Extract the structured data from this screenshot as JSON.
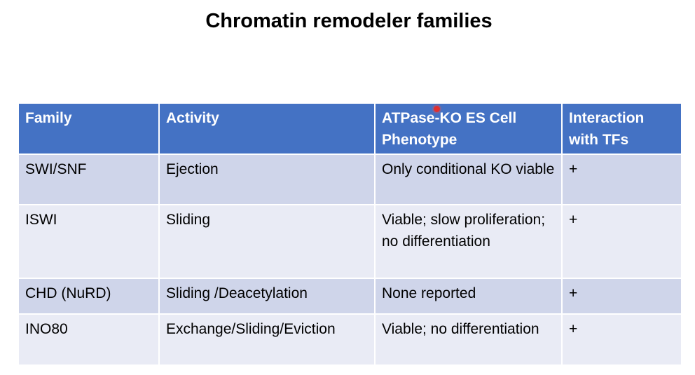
{
  "slide": {
    "title": "Chromatin remodeler families"
  },
  "table": {
    "columns": [
      "Family",
      "Activity",
      "ATPase-KO ES Cell Phenotype",
      "Interaction with TFs"
    ],
    "rows": [
      {
        "family": "SWI/SNF",
        "activity": "Ejection",
        "phenotype": "Only conditional KO viable",
        "interaction": "+"
      },
      {
        "family": "ISWI",
        "activity": "Sliding",
        "phenotype": "Viable; slow proliferation; no differentiation",
        "interaction": "+"
      },
      {
        "family": "CHD (NuRD)",
        "activity": "Sliding /Deacetylation",
        "phenotype": "None reported",
        "interaction": "+"
      },
      {
        "family": "INO80",
        "activity": "Exchange/Sliding/Eviction",
        "phenotype": "Viable; no differentiation",
        "interaction": "+"
      }
    ]
  },
  "colors": {
    "header_bg": "#4472c4",
    "row_odd_bg": "#cfd5ea",
    "row_even_bg": "#e9ebf5",
    "pointer": "#e03030"
  }
}
